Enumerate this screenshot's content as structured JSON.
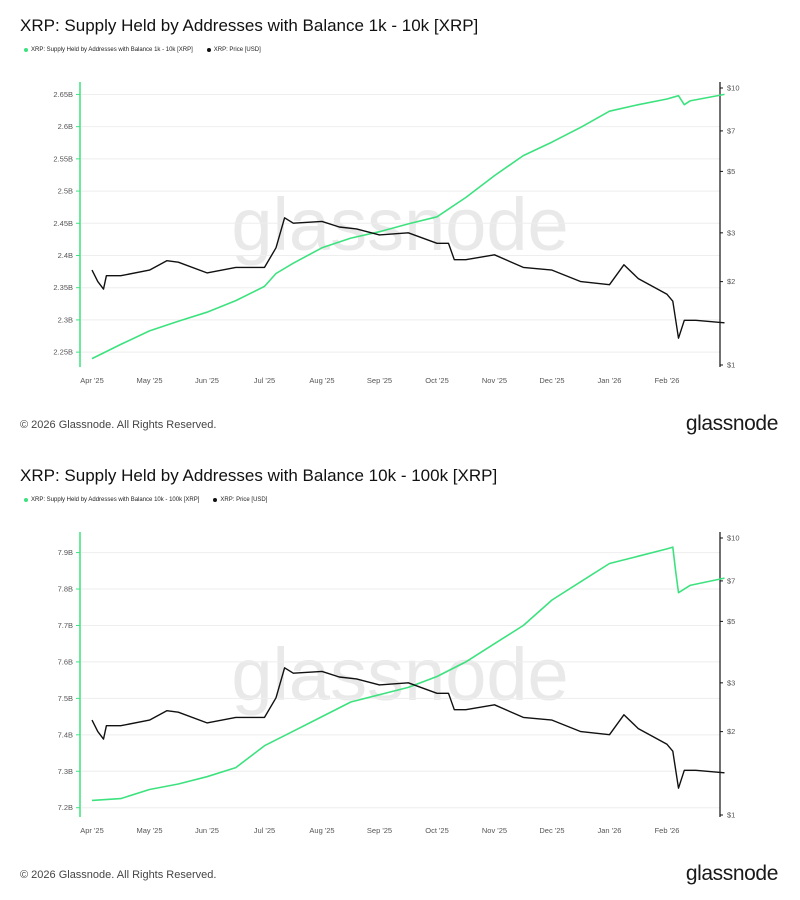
{
  "colors": {
    "supply": "#3de27f",
    "price": "#111111",
    "grid": "#eeeeee",
    "watermark": "#e9e9e9"
  },
  "watermark_text": "glassnode",
  "footer": {
    "copyright": "© 2026 Glassnode. All Rights Reserved.",
    "brand": "glassnode"
  },
  "chart_data": [
    {
      "type": "line",
      "title": "XRP: Supply Held by Addresses with Balance 1k - 10k [XRP]",
      "legend": [
        "XRP: Supply Held by Addresses with Balance 1k - 10k [XRP]",
        "XRP: Price [USD]"
      ],
      "x": [
        "Apr '25",
        "May '25",
        "Jun '25",
        "Jul '25",
        "Aug '25",
        "Sep '25",
        "Oct '25",
        "Nov '25",
        "Dec '25",
        "Jan '26",
        "Feb '26"
      ],
      "left_axis": {
        "ticks": [
          "2.25B",
          "2.3B",
          "2.35B",
          "2.4B",
          "2.45B",
          "2.5B",
          "2.55B",
          "2.6B",
          "2.65B"
        ],
        "values": [
          2.25,
          2.3,
          2.35,
          2.4,
          2.45,
          2.5,
          2.55,
          2.6,
          2.65
        ],
        "ylim": [
          2.23,
          2.66
        ],
        "unit": "B"
      },
      "right_axis": {
        "ticks": [
          "$1",
          "$2",
          "$3",
          "$5",
          "$7",
          "$10"
        ],
        "values": [
          1,
          2,
          3,
          5,
          7,
          10
        ],
        "scale": "log",
        "ylim": [
          1,
          10
        ]
      },
      "series": [
        {
          "name": "XRP: Supply Held by Addresses with Balance 1k - 10k [XRP]",
          "axis": "left",
          "values": [
            [
              0,
              2.24
            ],
            [
              0.5,
              2.262
            ],
            [
              1,
              2.283
            ],
            [
              1.5,
              2.298
            ],
            [
              2,
              2.312
            ],
            [
              2.5,
              2.33
            ],
            [
              3,
              2.352
            ],
            [
              3.2,
              2.372
            ],
            [
              3.5,
              2.388
            ],
            [
              4,
              2.412
            ],
            [
              4.5,
              2.427
            ],
            [
              5,
              2.437
            ],
            [
              5.5,
              2.449
            ],
            [
              6,
              2.46
            ],
            [
              6.5,
              2.49
            ],
            [
              7,
              2.524
            ],
            [
              7.5,
              2.555
            ],
            [
              8,
              2.576
            ],
            [
              8.5,
              2.599
            ],
            [
              9,
              2.624
            ],
            [
              9.5,
              2.634
            ],
            [
              10,
              2.643
            ],
            [
              10.2,
              2.648
            ],
            [
              10.3,
              2.634
            ],
            [
              10.4,
              2.64
            ],
            [
              11,
              2.65
            ]
          ]
        },
        {
          "name": "XRP: Price [USD]",
          "axis": "right",
          "values": [
            [
              0,
              2.2
            ],
            [
              0.1,
              2.0
            ],
            [
              0.2,
              1.88
            ],
            [
              0.25,
              2.1
            ],
            [
              0.5,
              2.1
            ],
            [
              1,
              2.2
            ],
            [
              1.3,
              2.38
            ],
            [
              1.5,
              2.35
            ],
            [
              2,
              2.15
            ],
            [
              2.5,
              2.25
            ],
            [
              3,
              2.25
            ],
            [
              3.2,
              2.65
            ],
            [
              3.35,
              3.4
            ],
            [
              3.5,
              3.25
            ],
            [
              4,
              3.3
            ],
            [
              4.3,
              3.15
            ],
            [
              4.6,
              3.1
            ],
            [
              5,
              2.95
            ],
            [
              5.5,
              3.0
            ],
            [
              6,
              2.75
            ],
            [
              6.2,
              2.75
            ],
            [
              6.3,
              2.4
            ],
            [
              6.5,
              2.4
            ],
            [
              7,
              2.5
            ],
            [
              7.5,
              2.25
            ],
            [
              8,
              2.2
            ],
            [
              8.5,
              2.0
            ],
            [
              9,
              1.95
            ],
            [
              9.25,
              2.3
            ],
            [
              9.5,
              2.05
            ],
            [
              10,
              1.8
            ],
            [
              10.1,
              1.7
            ],
            [
              10.2,
              1.25
            ],
            [
              10.3,
              1.45
            ],
            [
              10.5,
              1.45
            ],
            [
              11,
              1.42
            ]
          ]
        }
      ]
    },
    {
      "type": "line",
      "title": "XRP: Supply Held by Addresses with Balance 10k - 100k [XRP]",
      "legend": [
        "XRP: Supply Held by Addresses with Balance 10k - 100k [XRP]",
        "XRP: Price [USD]"
      ],
      "x": [
        "Apr '25",
        "May '25",
        "Jun '25",
        "Jul '25",
        "Aug '25",
        "Sep '25",
        "Oct '25",
        "Nov '25",
        "Dec '25",
        "Jan '26",
        "Feb '26"
      ],
      "left_axis": {
        "ticks": [
          "7.2B",
          "7.3B",
          "7.4B",
          "7.5B",
          "7.6B",
          "7.7B",
          "7.8B",
          "7.9B"
        ],
        "values": [
          7.2,
          7.3,
          7.4,
          7.5,
          7.6,
          7.7,
          7.8,
          7.9
        ],
        "ylim": [
          7.18,
          7.94
        ],
        "unit": "B"
      },
      "right_axis": {
        "ticks": [
          "$1",
          "$2",
          "$3",
          "$5",
          "$7",
          "$10"
        ],
        "values": [
          1,
          2,
          3,
          5,
          7,
          10
        ],
        "scale": "log",
        "ylim": [
          1,
          10
        ]
      },
      "series": [
        {
          "name": "XRP: Supply Held by Addresses with Balance 10k - 100k [XRP]",
          "axis": "left",
          "values": [
            [
              0,
              7.22
            ],
            [
              0.5,
              7.225
            ],
            [
              1,
              7.25
            ],
            [
              1.5,
              7.265
            ],
            [
              2,
              7.285
            ],
            [
              2.5,
              7.31
            ],
            [
              3,
              7.37
            ],
            [
              3.5,
              7.41
            ],
            [
              4,
              7.45
            ],
            [
              4.5,
              7.49
            ],
            [
              5,
              7.51
            ],
            [
              5.5,
              7.53
            ],
            [
              6,
              7.56
            ],
            [
              6.5,
              7.6
            ],
            [
              7,
              7.65
            ],
            [
              7.5,
              7.7
            ],
            [
              8,
              7.77
            ],
            [
              8.5,
              7.82
            ],
            [
              9,
              7.87
            ],
            [
              9.5,
              7.89
            ],
            [
              10,
              7.91
            ],
            [
              10.1,
              7.915
            ],
            [
              10.15,
              7.85
            ],
            [
              10.2,
              7.79
            ],
            [
              10.4,
              7.81
            ],
            [
              11,
              7.83
            ]
          ]
        },
        {
          "name": "XRP: Price [USD]",
          "axis": "right",
          "values": [
            [
              0,
              2.2
            ],
            [
              0.1,
              2.0
            ],
            [
              0.2,
              1.88
            ],
            [
              0.25,
              2.1
            ],
            [
              0.5,
              2.1
            ],
            [
              1,
              2.2
            ],
            [
              1.3,
              2.38
            ],
            [
              1.5,
              2.35
            ],
            [
              2,
              2.15
            ],
            [
              2.5,
              2.25
            ],
            [
              3,
              2.25
            ],
            [
              3.2,
              2.65
            ],
            [
              3.35,
              3.4
            ],
            [
              3.5,
              3.25
            ],
            [
              4,
              3.3
            ],
            [
              4.3,
              3.15
            ],
            [
              4.6,
              3.1
            ],
            [
              5,
              2.95
            ],
            [
              5.5,
              3.0
            ],
            [
              6,
              2.75
            ],
            [
              6.2,
              2.75
            ],
            [
              6.3,
              2.4
            ],
            [
              6.5,
              2.4
            ],
            [
              7,
              2.5
            ],
            [
              7.5,
              2.25
            ],
            [
              8,
              2.2
            ],
            [
              8.5,
              2.0
            ],
            [
              9,
              1.95
            ],
            [
              9.25,
              2.3
            ],
            [
              9.5,
              2.05
            ],
            [
              10,
              1.8
            ],
            [
              10.1,
              1.7
            ],
            [
              10.2,
              1.25
            ],
            [
              10.3,
              1.45
            ],
            [
              10.5,
              1.45
            ],
            [
              11,
              1.42
            ]
          ]
        }
      ]
    }
  ]
}
